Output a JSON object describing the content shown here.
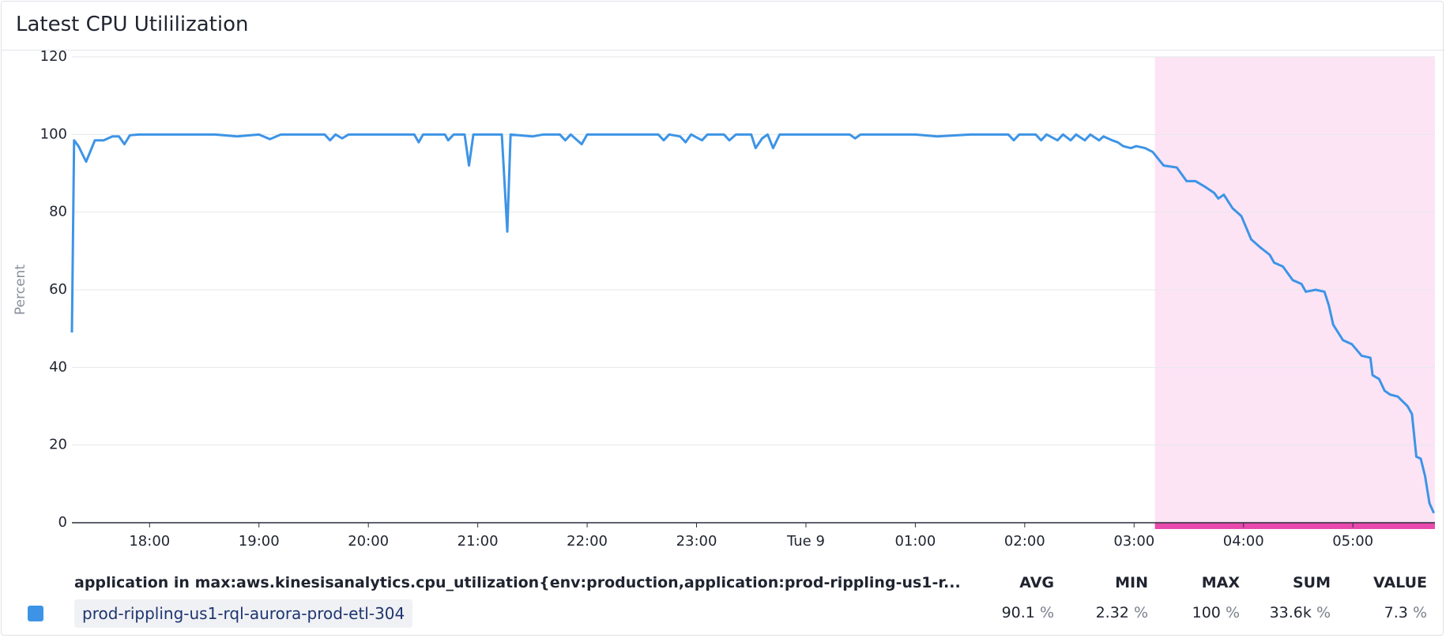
{
  "chart_data": {
    "type": "line",
    "title": "Latest CPU Utililization",
    "ylabel": "Percent",
    "x": [
      17.29,
      17.31,
      17.35,
      17.42,
      17.5,
      17.58,
      17.66,
      17.72,
      17.77,
      17.82,
      17.9,
      18.0,
      18.2,
      18.4,
      18.6,
      18.8,
      19.0,
      19.1,
      19.2,
      19.4,
      19.6,
      19.65,
      19.7,
      19.76,
      19.82,
      20.0,
      20.2,
      20.42,
      20.46,
      20.5,
      20.7,
      20.73,
      20.78,
      20.88,
      20.92,
      20.96,
      21.22,
      21.27,
      21.3,
      21.5,
      21.6,
      21.75,
      21.8,
      21.85,
      21.95,
      22.0,
      22.3,
      22.65,
      22.7,
      22.75,
      22.85,
      22.9,
      22.95,
      23.05,
      23.1,
      23.25,
      23.3,
      23.36,
      23.5,
      23.54,
      23.6,
      23.65,
      23.7,
      23.76,
      24.0,
      24.4,
      24.45,
      24.5,
      25.0,
      25.2,
      25.5,
      25.85,
      25.9,
      25.95,
      26.1,
      26.15,
      26.2,
      26.3,
      26.35,
      26.42,
      26.47,
      26.55,
      26.6,
      26.68,
      26.72,
      26.8,
      26.85,
      26.9,
      26.97,
      27.02,
      27.1,
      27.17,
      27.27,
      27.39,
      27.48,
      27.56,
      27.65,
      27.73,
      27.77,
      27.82,
      27.9,
      27.98,
      28.07,
      28.15,
      28.24,
      28.28,
      28.36,
      28.45,
      28.53,
      28.57,
      28.66,
      28.74,
      28.78,
      28.82,
      28.91,
      28.99,
      29.08,
      29.16,
      29.18,
      29.24,
      29.29,
      29.34,
      29.41,
      29.5,
      29.54,
      29.58,
      29.62,
      29.66,
      29.7,
      29.74
    ],
    "series": [
      {
        "name": "prod-rippling-us1-rql-aurora-prod-etl-304",
        "color": "#3d94e6",
        "values": [
          49,
          98.5,
          97,
          93,
          98.5,
          98.5,
          99.5,
          99.5,
          97.5,
          99.8,
          100,
          100,
          100,
          100,
          100,
          99.5,
          100,
          98.8,
          100,
          100,
          100,
          98.5,
          100,
          99,
          100,
          100,
          100,
          100,
          98,
          100,
          100,
          98.5,
          100,
          100,
          92,
          100,
          100,
          75,
          100,
          99.5,
          100,
          100,
          98.5,
          100,
          97.5,
          100,
          100,
          100,
          98.5,
          100,
          99.5,
          98,
          100,
          98.5,
          100,
          100,
          98.5,
          100,
          100,
          96.5,
          99,
          100,
          96.5,
          100,
          100,
          100,
          99,
          100,
          100,
          99.5,
          100,
          100,
          98.5,
          100,
          100,
          98.5,
          100,
          98.5,
          100,
          98.5,
          100,
          98.5,
          100,
          98.5,
          99.5,
          98.5,
          98,
          97,
          96.5,
          97,
          96.5,
          95.5,
          92,
          91.5,
          88,
          88,
          86.5,
          85,
          83.5,
          84.5,
          81,
          79,
          73,
          71,
          69,
          67,
          66,
          62.5,
          61.5,
          59.5,
          60,
          59.5,
          56,
          51,
          47,
          46,
          43,
          42.5,
          38,
          37,
          34,
          33,
          32.5,
          30,
          28,
          17,
          16.5,
          12,
          5,
          2.5
        ]
      }
    ],
    "xlim": [
      17.29,
      29.75
    ],
    "xticks": [
      {
        "value": 18,
        "label": "18:00"
      },
      {
        "value": 19,
        "label": "19:00"
      },
      {
        "value": 20,
        "label": "20:00"
      },
      {
        "value": 21,
        "label": "21:00"
      },
      {
        "value": 22,
        "label": "22:00"
      },
      {
        "value": 23,
        "label": "23:00"
      },
      {
        "value": 24,
        "label": "Tue 9"
      },
      {
        "value": 25,
        "label": "01:00"
      },
      {
        "value": 26,
        "label": "02:00"
      },
      {
        "value": 27,
        "label": "03:00"
      },
      {
        "value": 28,
        "label": "04:00"
      },
      {
        "value": 29,
        "label": "05:00"
      }
    ],
    "ylim": [
      0,
      120
    ],
    "yticks": [
      0,
      20,
      40,
      60,
      80,
      100,
      120
    ],
    "grid": true,
    "highlight": {
      "from": 27.19,
      "to": 29.75,
      "color": "#fce4f5",
      "bar_color": "#e84aae"
    }
  },
  "legend_table": {
    "query": "application in max:aws.kinesisanalytics.cpu_utilization{env:production,application:prod-rippling-us1-r...",
    "columns": [
      "AVG",
      "MIN",
      "MAX",
      "SUM",
      "VALUE"
    ],
    "values": [
      "90.1",
      "2.32",
      "100",
      "33.6k",
      "7.3"
    ],
    "units": [
      "%",
      "%",
      "%",
      "%",
      "%"
    ]
  }
}
